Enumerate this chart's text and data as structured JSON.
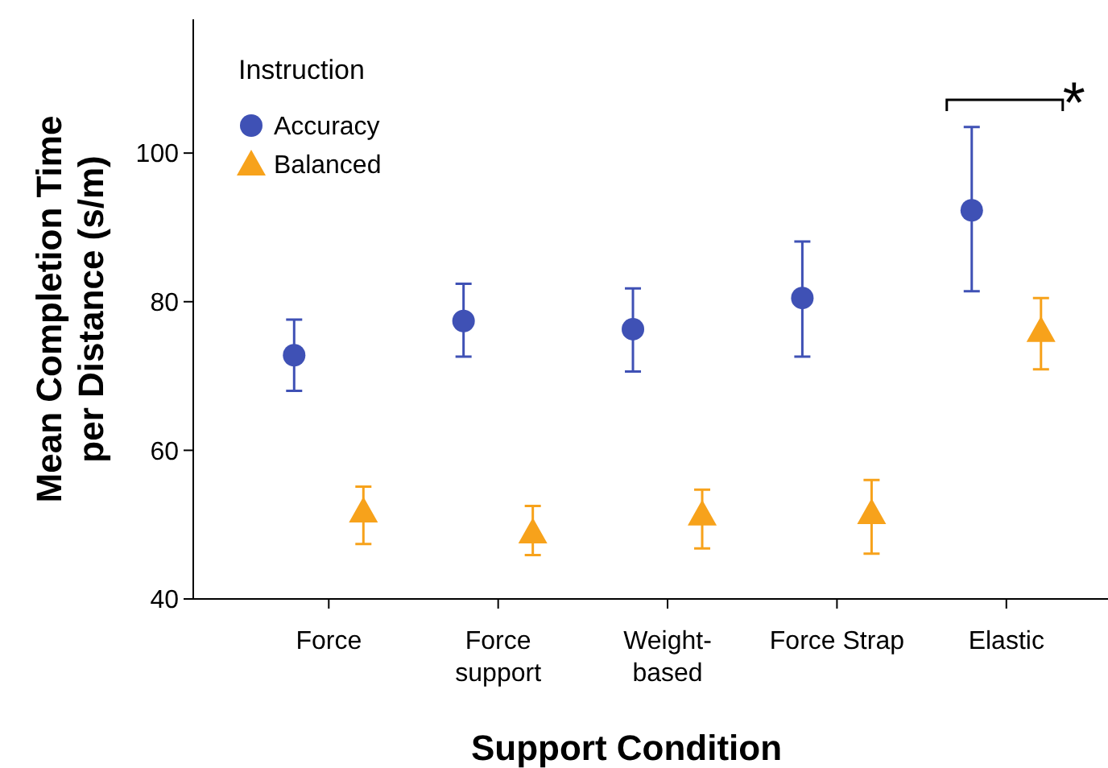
{
  "chart_data": {
    "type": "scatter",
    "xlabel": "Support Condition",
    "ylabel": "Mean Completion Time\nper Distance (s/m)",
    "legend_title": "Instruction",
    "legend": "top left",
    "grid": false,
    "categories": [
      "Force",
      "Force\nsupport",
      "Weight-\nbased",
      "Force Strap",
      "Elastic"
    ],
    "ylim": [
      40,
      118
    ],
    "yticks": [
      40,
      60,
      80,
      100
    ],
    "series": [
      {
        "name": "Accuracy",
        "color": "#3f51b5",
        "marker": "circle",
        "values": [
          72.8,
          77.4,
          76.3,
          80.5,
          92.3
        ],
        "errors": [
          [
            68.0,
            77.6
          ],
          [
            72.6,
            82.4
          ],
          [
            70.6,
            81.8
          ],
          [
            72.6,
            88.1
          ],
          [
            81.4,
            103.5
          ]
        ]
      },
      {
        "name": "Balanced",
        "color": "#f7a21b",
        "marker": "triangle",
        "values": [
          51.8,
          49.0,
          51.4,
          51.6,
          76.1
        ],
        "errors": [
          [
            47.4,
            55.1
          ],
          [
            45.9,
            52.5
          ],
          [
            46.8,
            54.7
          ],
          [
            46.1,
            56.0
          ],
          [
            70.9,
            80.5
          ]
        ]
      }
    ],
    "annotations": [
      "*"
    ]
  }
}
